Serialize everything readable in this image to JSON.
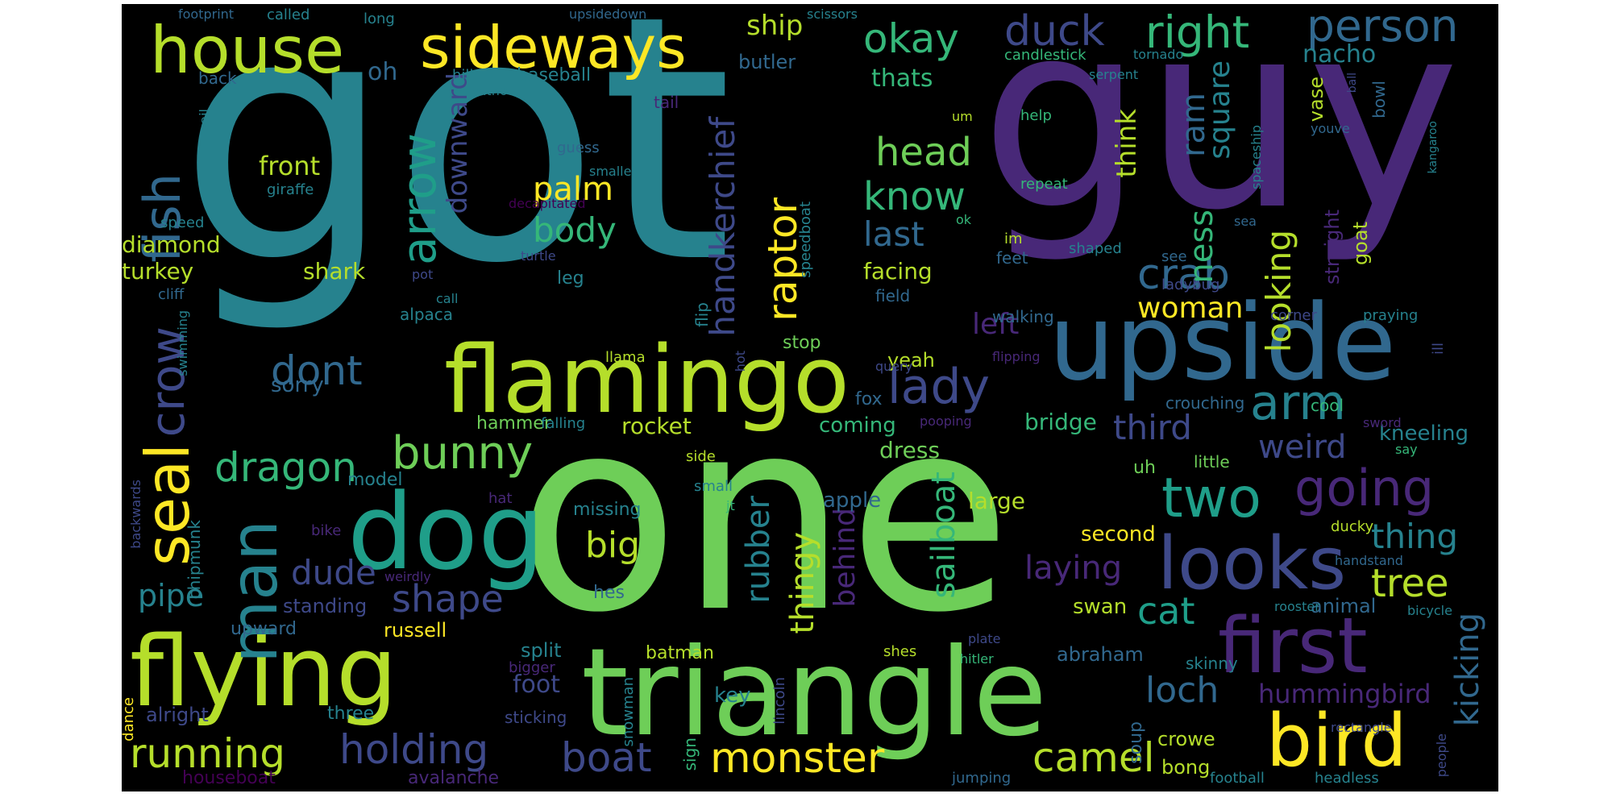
{
  "words": {
    "got": "got",
    "guy": "guy",
    "one": "one",
    "upside": "upside",
    "triangle": "triangle",
    "flamingo": "flamingo",
    "flying": "flying",
    "dog": "dog",
    "looks": "looks",
    "first": "first",
    "bird": "bird",
    "house": "house",
    "sideways": "sideways",
    "man": "man",
    "seal": "seal",
    "fish": "fish",
    "crow": "crow",
    "arrow": "arrow",
    "dont": "dont",
    "dragon": "dragon",
    "bunny": "bunny",
    "okay": "okay",
    "duck": "duck",
    "right": "right",
    "person": "person",
    "head": "head",
    "know": "know",
    "crab": "crab",
    "lady": "lady",
    "arm": "arm",
    "woman": "woman",
    "two": "two",
    "going": "going",
    "running": "running",
    "holding": "holding",
    "monster": "monster",
    "boat": "boat",
    "camel": "camel",
    "tree": "tree",
    "thing": "thing",
    "cat": "cat",
    "loch": "loch",
    "hummingbird": "hummingbird",
    "kicking": "kicking",
    "shape": "shape",
    "dude": "dude",
    "pipe": "pipe",
    "laying": "laying",
    "body": "body",
    "palm": "palm",
    "big": "big",
    "raptor": "raptor",
    "handkerchief": "handkerchief",
    "ship": "ship",
    "thats": "thats",
    "oh": "oh",
    "baseball": "baseball",
    "butler": "butler",
    "nacho": "nacho",
    "candlestick": "candlestick",
    "tornado": "tornado",
    "square": "square",
    "ram": "ram",
    "ness": "ness",
    "think": "think",
    "looking": "looking",
    "third": "third",
    "weird": "weird",
    "kneeling": "kneeling",
    "front": "front",
    "diamond": "diamond",
    "turkey": "turkey",
    "shark": "shark",
    "rocket": "rocket",
    "sailboat": "sailboat",
    "rubber": "rubber",
    "thingy": "thingy",
    "behind": "behind",
    "left": "left",
    "facing": "facing",
    "last": "last",
    "downward": "downward",
    "sorry": "sorry",
    "model": "model",
    "missing": "missing",
    "apple": "apple",
    "large": "large",
    "second": "second",
    "swan": "swan",
    "animal": "animal",
    "russell": "russell",
    "standing": "standing",
    "upward": "upward",
    "split": "split",
    "batman": "batman",
    "foot": "foot",
    "key": "key",
    "alright": "alright",
    "three": "three",
    "sticking": "sticking",
    "houseboat": "houseboat",
    "avalanche": "avalanche",
    "jumping": "jumping",
    "crowe": "crowe",
    "bong": "bong",
    "football": "football",
    "headless": "headless",
    "soup": "soup",
    "abraham": "abraham",
    "skinny": "skinny",
    "lincoln": "lincoln",
    "hitler": "hitler",
    "shes": "shes",
    "plate": "plate",
    "snowman": "snowman",
    "sign": "sign",
    "hes": "hes",
    "bigger": "bigger",
    "dance": "dance",
    "chipmunk": "chipmunk",
    "backwards": "backwards",
    "weirdly": "weirdly",
    "bike": "bike",
    "hat": "hat",
    "small": "small",
    "jt": "jt",
    "dress": "dress",
    "bridge": "bridge",
    "coming": "coming",
    "fox": "fox",
    "stop": "stop",
    "hammer": "hammer",
    "falling": "falling",
    "side": "side",
    "yeah": "yeah",
    "crouching": "crouching",
    "cool": "cool",
    "sword": "sword",
    "say": "say",
    "little": "little",
    "uh": "uh",
    "pooping": "pooping",
    "flipping": "flipping",
    "ill": "ill",
    "query": "query",
    "hot": "hot",
    "llama": "llama",
    "flip": "flip",
    "field": "field",
    "walking": "walking",
    "corner": "corner",
    "praying": "praying",
    "ladybug": "ladybug",
    "shaped": "shaped",
    "see": "see",
    "straight": "straight",
    "goat": "goat",
    "feet": "feet",
    "im": "im",
    "repeat": "repeat",
    "ok": "ok",
    "sea": "sea",
    "help": "help",
    "spaceship": "spaceship",
    "youve": "youve",
    "kangaroo": "kangaroo",
    "bowl": "bowl",
    "ball": "ball",
    "vase": "vase",
    "um": "um",
    "smaller": "smaller",
    "speedboat": "speedboat",
    "guess": "guess",
    "decapitated": "decapitated",
    "turtle": "turtle",
    "leg": "leg",
    "pot": "pot",
    "call": "call",
    "alpaca": "alpaca",
    "cliff": "cliff",
    "speed": "speed",
    "giraffe": "giraffe",
    "sail": "sail",
    "back": "back",
    "hill": "hill",
    "without": "without",
    "serpent": "serpent",
    "tail": "tail",
    "footprint": "footprint",
    "called": "called",
    "long": "long",
    "upsidedown": "upsidedown",
    "scissors": "scissors",
    "swimming": "swimming",
    "ducky": "ducky",
    "handstand": "handstand",
    "rooster": "rooster",
    "bicycle": "bicycle",
    "rectangle": "rectangle",
    "people": "people"
  },
  "palette": {
    "background": "#000000",
    "yellow": "#fde725",
    "lime": "#b5de2b",
    "green": "#6ece58",
    "sea": "#35b779",
    "teal": "#1f9e89",
    "cyan": "#26828e",
    "steel": "#31688e",
    "blue": "#3e4989",
    "indigo": "#482878",
    "purple": "#440154"
  }
}
